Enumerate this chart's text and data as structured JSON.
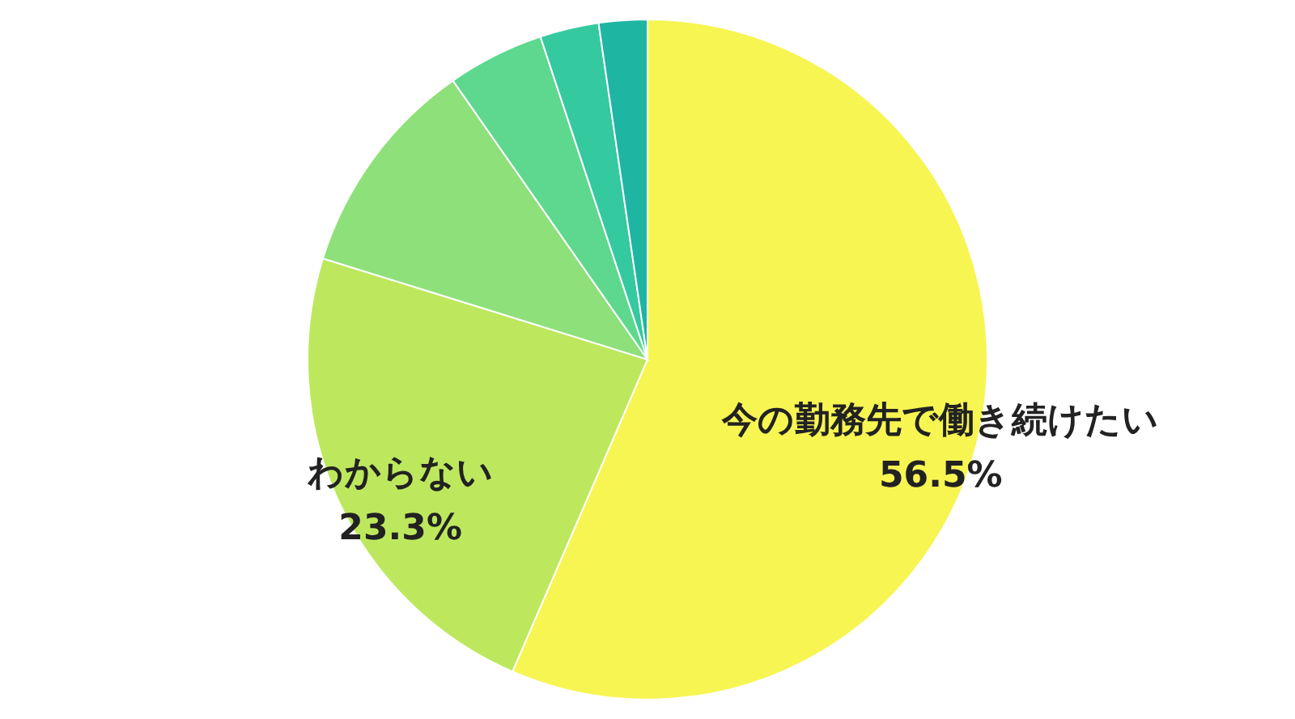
{
  "chart_data": {
    "type": "pie",
    "categories": [
      "今の勤務先で働き続けたい",
      "わからない",
      null,
      null,
      null,
      null
    ],
    "values": [
      56.5,
      23.3,
      10.5,
      4.6,
      2.8,
      2.3
    ],
    "colors": [
      "#f7f552",
      "#bde85e",
      "#8ee07a",
      "#5ed88f",
      "#35c9a0",
      "#1fb5a3"
    ],
    "value_labels": [
      "56.5%",
      "23.3%",
      null,
      null,
      null,
      null
    ],
    "legend": false
  }
}
